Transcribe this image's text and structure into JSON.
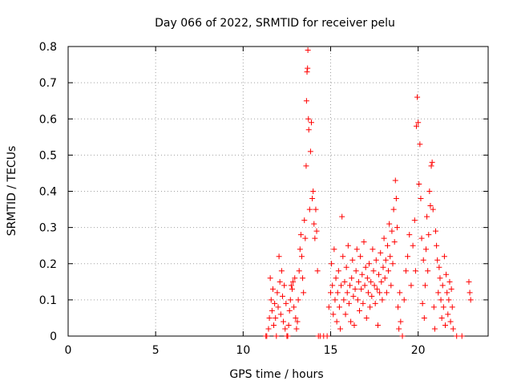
{
  "chart_data": {
    "type": "scatter",
    "title": "Day 066 of 2022, SRMTID for receiver pelu",
    "xlabel": "GPS time / hours",
    "ylabel": "SRMTID / TECUs",
    "xlim": [
      0,
      24
    ],
    "ylim": [
      0,
      0.8
    ],
    "grid": true,
    "marker": "+",
    "color": "#ff0000",
    "x_ticks": [
      {
        "value": 0,
        "label": "0"
      },
      {
        "value": 5,
        "label": "5"
      },
      {
        "value": 10,
        "label": "10"
      },
      {
        "value": 15,
        "label": "15"
      },
      {
        "value": 20,
        "label": "20"
      }
    ],
    "y_ticks": [
      {
        "value": 0,
        "label": "0"
      },
      {
        "value": 0.1,
        "label": "0.1"
      },
      {
        "value": 0.2,
        "label": "0.2"
      },
      {
        "value": 0.3,
        "label": "0.3"
      },
      {
        "value": 0.4,
        "label": "0.4"
      },
      {
        "value": 0.5,
        "label": "0.5"
      },
      {
        "value": 0.6,
        "label": "0.6"
      },
      {
        "value": 0.7,
        "label": "0.7"
      },
      {
        "value": 0.8,
        "label": "0.8"
      }
    ],
    "series": [
      {
        "name": "SRMTID",
        "points": [
          [
            11.3,
            0.0
          ],
          [
            11.35,
            0.0
          ],
          [
            11.45,
            0.02
          ],
          [
            11.5,
            0.05
          ],
          [
            11.55,
            0.16
          ],
          [
            11.6,
            0.1
          ],
          [
            11.65,
            0.07
          ],
          [
            11.7,
            0.13
          ],
          [
            11.75,
            0.03
          ],
          [
            11.8,
            0.09
          ],
          [
            11.85,
            0.05
          ],
          [
            11.9,
            0.0
          ],
          [
            11.95,
            0.12
          ],
          [
            12.0,
            0.08
          ],
          [
            12.05,
            0.22
          ],
          [
            12.1,
            0.15
          ],
          [
            12.15,
            0.06
          ],
          [
            12.2,
            0.18
          ],
          [
            12.25,
            0.11
          ],
          [
            12.3,
            0.04
          ],
          [
            12.35,
            0.14
          ],
          [
            12.4,
            0.02
          ],
          [
            12.45,
            0.09
          ],
          [
            12.5,
            0.0
          ],
          [
            12.55,
            0.0
          ],
          [
            12.6,
            0.03
          ],
          [
            12.65,
            0.07
          ],
          [
            12.7,
            0.1
          ],
          [
            12.75,
            0.14
          ],
          [
            12.8,
            0.13
          ],
          [
            12.85,
            0.15
          ],
          [
            12.9,
            0.08
          ],
          [
            12.95,
            0.16
          ],
          [
            13.0,
            0.05
          ],
          [
            13.05,
            0.02
          ],
          [
            13.1,
            0.04
          ],
          [
            13.15,
            0.1
          ],
          [
            13.2,
            0.18
          ],
          [
            13.25,
            0.24
          ],
          [
            13.3,
            0.28
          ],
          [
            13.35,
            0.22
          ],
          [
            13.4,
            0.16
          ],
          [
            13.45,
            0.12
          ],
          [
            13.5,
            0.32
          ],
          [
            13.55,
            0.27
          ],
          [
            13.6,
            0.47
          ],
          [
            13.62,
            0.65
          ],
          [
            13.65,
            0.73
          ],
          [
            13.68,
            0.74
          ],
          [
            13.7,
            0.79
          ],
          [
            13.73,
            0.6
          ],
          [
            13.75,
            0.57
          ],
          [
            13.8,
            0.35
          ],
          [
            13.85,
            0.51
          ],
          [
            13.9,
            0.59
          ],
          [
            13.95,
            0.38
          ],
          [
            14.0,
            0.4
          ],
          [
            14.05,
            0.31
          ],
          [
            14.1,
            0.27
          ],
          [
            14.15,
            0.35
          ],
          [
            14.2,
            0.29
          ],
          [
            14.25,
            0.18
          ],
          [
            14.3,
            0.0
          ],
          [
            14.4,
            0.0
          ],
          [
            14.6,
            0.0
          ],
          [
            14.8,
            0.0
          ],
          [
            14.9,
            0.08
          ],
          [
            15.0,
            0.12
          ],
          [
            15.05,
            0.2
          ],
          [
            15.1,
            0.14
          ],
          [
            15.15,
            0.06
          ],
          [
            15.2,
            0.24
          ],
          [
            15.25,
            0.1
          ],
          [
            15.3,
            0.16
          ],
          [
            15.35,
            0.04
          ],
          [
            15.4,
            0.12
          ],
          [
            15.45,
            0.18
          ],
          [
            15.5,
            0.08
          ],
          [
            15.55,
            0.02
          ],
          [
            15.6,
            0.14
          ],
          [
            15.65,
            0.33
          ],
          [
            15.7,
            0.22
          ],
          [
            15.75,
            0.1
          ],
          [
            15.8,
            0.15
          ],
          [
            15.85,
            0.06
          ],
          [
            15.9,
            0.19
          ],
          [
            15.95,
            0.12
          ],
          [
            16.0,
            0.25
          ],
          [
            16.05,
            0.09
          ],
          [
            16.1,
            0.14
          ],
          [
            16.15,
            0.04
          ],
          [
            16.2,
            0.16
          ],
          [
            16.25,
            0.21
          ],
          [
            16.3,
            0.11
          ],
          [
            16.35,
            0.03
          ],
          [
            16.4,
            0.13
          ],
          [
            16.45,
            0.18
          ],
          [
            16.5,
            0.24
          ],
          [
            16.55,
            0.1
          ],
          [
            16.6,
            0.15
          ],
          [
            16.65,
            0.07
          ],
          [
            16.7,
            0.22
          ],
          [
            16.75,
            0.13
          ],
          [
            16.8,
            0.17
          ],
          [
            16.85,
            0.09
          ],
          [
            16.9,
            0.26
          ],
          [
            16.95,
            0.14
          ],
          [
            17.0,
            0.19
          ],
          [
            17.05,
            0.05
          ],
          [
            17.1,
            0.16
          ],
          [
            17.15,
            0.12
          ],
          [
            17.2,
            0.2
          ],
          [
            17.25,
            0.08
          ],
          [
            17.3,
            0.15
          ],
          [
            17.35,
            0.11
          ],
          [
            17.4,
            0.24
          ],
          [
            17.45,
            0.18
          ],
          [
            17.5,
            0.14
          ],
          [
            17.55,
            0.09
          ],
          [
            17.6,
            0.21
          ],
          [
            17.65,
            0.13
          ],
          [
            17.7,
            0.03
          ],
          [
            17.75,
            0.17
          ],
          [
            17.8,
            0.12
          ],
          [
            17.85,
            0.23
          ],
          [
            17.9,
            0.15
          ],
          [
            17.95,
            0.1
          ],
          [
            18.0,
            0.19
          ],
          [
            18.05,
            0.27
          ],
          [
            18.1,
            0.16
          ],
          [
            18.15,
            0.21
          ],
          [
            18.2,
            0.12
          ],
          [
            18.25,
            0.25
          ],
          [
            18.3,
            0.18
          ],
          [
            18.35,
            0.31
          ],
          [
            18.4,
            0.22
          ],
          [
            18.45,
            0.14
          ],
          [
            18.5,
            0.29
          ],
          [
            18.55,
            0.2
          ],
          [
            18.6,
            0.35
          ],
          [
            18.65,
            0.26
          ],
          [
            18.7,
            0.43
          ],
          [
            18.75,
            0.38
          ],
          [
            18.8,
            0.3
          ],
          [
            18.85,
            0.08
          ],
          [
            18.9,
            0.02
          ],
          [
            18.95,
            0.12
          ],
          [
            19.0,
            0.04
          ],
          [
            19.1,
            0.0
          ],
          [
            19.2,
            0.1
          ],
          [
            19.3,
            0.18
          ],
          [
            19.4,
            0.22
          ],
          [
            19.5,
            0.28
          ],
          [
            19.6,
            0.14
          ],
          [
            19.7,
            0.25
          ],
          [
            19.8,
            0.32
          ],
          [
            19.85,
            0.18
          ],
          [
            19.9,
            0.58
          ],
          [
            19.95,
            0.66
          ],
          [
            20.0,
            0.59
          ],
          [
            20.05,
            0.42
          ],
          [
            20.1,
            0.53
          ],
          [
            20.15,
            0.38
          ],
          [
            20.2,
            0.27
          ],
          [
            20.25,
            0.09
          ],
          [
            20.3,
            0.21
          ],
          [
            20.35,
            0.05
          ],
          [
            20.4,
            0.14
          ],
          [
            20.45,
            0.24
          ],
          [
            20.5,
            0.33
          ],
          [
            20.55,
            0.18
          ],
          [
            20.6,
            0.28
          ],
          [
            20.65,
            0.4
          ],
          [
            20.7,
            0.36
          ],
          [
            20.75,
            0.47
          ],
          [
            20.8,
            0.48
          ],
          [
            20.85,
            0.35
          ],
          [
            20.9,
            0.08
          ],
          [
            20.95,
            0.02
          ],
          [
            21.0,
            0.29
          ],
          [
            21.05,
            0.25
          ],
          [
            21.1,
            0.21
          ],
          [
            21.15,
            0.12
          ],
          [
            21.2,
            0.19
          ],
          [
            21.25,
            0.16
          ],
          [
            21.3,
            0.1
          ],
          [
            21.35,
            0.05
          ],
          [
            21.4,
            0.14
          ],
          [
            21.45,
            0.08
          ],
          [
            21.5,
            0.22
          ],
          [
            21.55,
            0.03
          ],
          [
            21.6,
            0.17
          ],
          [
            21.65,
            0.12
          ],
          [
            21.7,
            0.06
          ],
          [
            21.75,
            0.1
          ],
          [
            21.8,
            0.15
          ],
          [
            21.85,
            0.04
          ],
          [
            21.9,
            0.13
          ],
          [
            21.95,
            0.08
          ],
          [
            22.0,
            0.02
          ],
          [
            22.2,
            0.0
          ],
          [
            22.5,
            0.0
          ],
          [
            22.9,
            0.15
          ],
          [
            22.95,
            0.12
          ],
          [
            23.0,
            0.1
          ]
        ]
      }
    ]
  }
}
